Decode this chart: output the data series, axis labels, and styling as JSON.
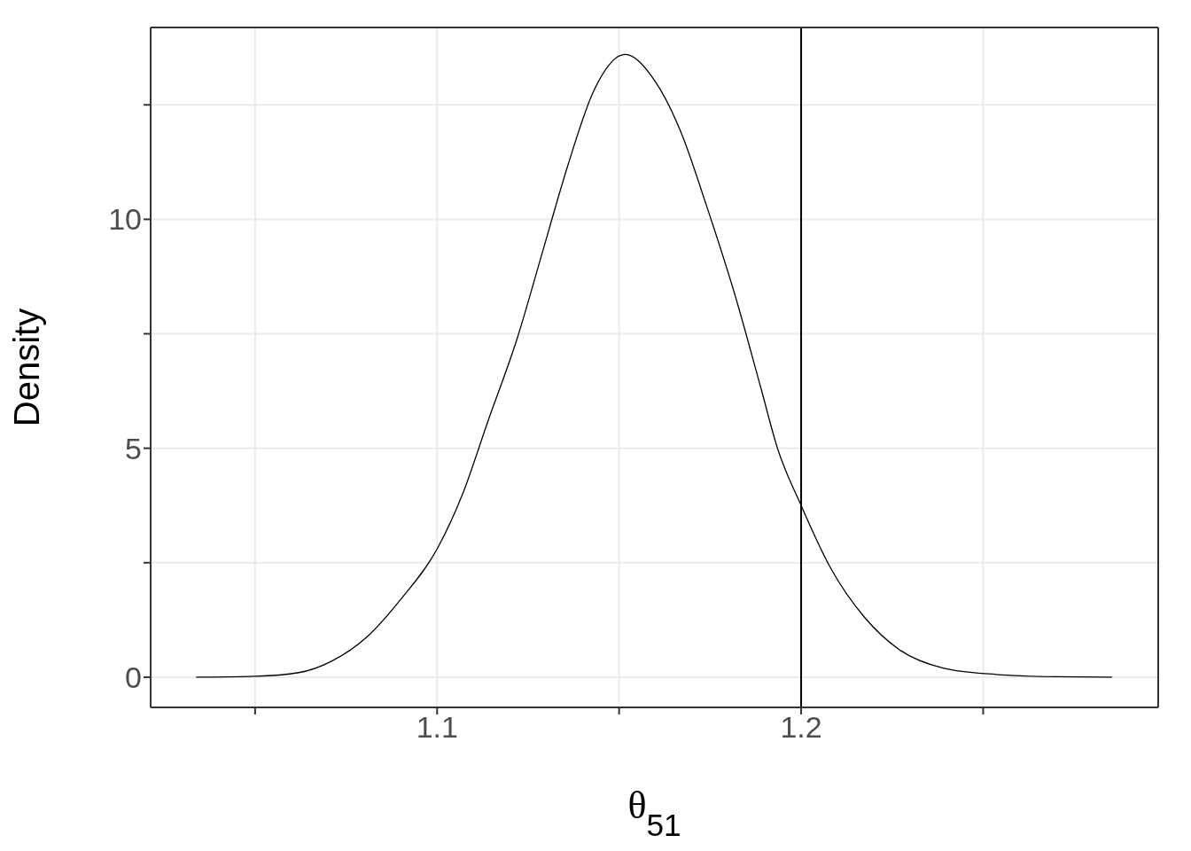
{
  "chart_data": {
    "type": "line",
    "xlabel": "θ$_{51}$",
    "ylabel": "Density",
    "x": [
      1.0338,
      1.05,
      1.062,
      1.071,
      1.081,
      1.09,
      1.1,
      1.107,
      1.114,
      1.122,
      1.129,
      1.136,
      1.143,
      1.1516,
      1.16,
      1.167,
      1.174,
      1.182,
      1.189,
      1.1935,
      1.2,
      1.208,
      1.2175,
      1.227,
      1.239,
      1.2535,
      1.27,
      1.2854
    ],
    "series": [
      {
        "color": "#000000",
        "values": [
          0,
          0.02,
          0.1,
          0.35,
          0.9,
          1.7,
          2.8,
          4.0,
          5.6,
          7.4,
          9.3,
          11.2,
          12.8,
          13.6,
          13.0,
          11.9,
          10.3,
          8.3,
          6.3,
          5.0,
          3.75,
          2.4,
          1.3,
          0.6,
          0.2,
          0.06,
          0.01,
          0
        ]
      }
    ],
    "xlim": [
      1.0213,
      1.2981
    ],
    "ylim": [
      -0.66,
      14.19
    ],
    "xticks": [
      {
        "value": 1.05,
        "label": null
      },
      {
        "value": 1.1,
        "label": "1.1"
      },
      {
        "value": 1.15,
        "label": null
      },
      {
        "value": 1.2,
        "label": "1.2"
      },
      {
        "value": 1.25,
        "label": null
      }
    ],
    "yticks": [
      0,
      {
        "value": 2.5,
        "label": null
      },
      5,
      {
        "value": 7.5,
        "label": null
      },
      10,
      {
        "value": 12.5,
        "label": null
      }
    ],
    "grid": true,
    "legend": false,
    "marker": "none",
    "line_style": "solid",
    "ref_lines": [
      {
        "axis": "x",
        "value": 1.2,
        "color": "#000000"
      }
    ]
  }
}
